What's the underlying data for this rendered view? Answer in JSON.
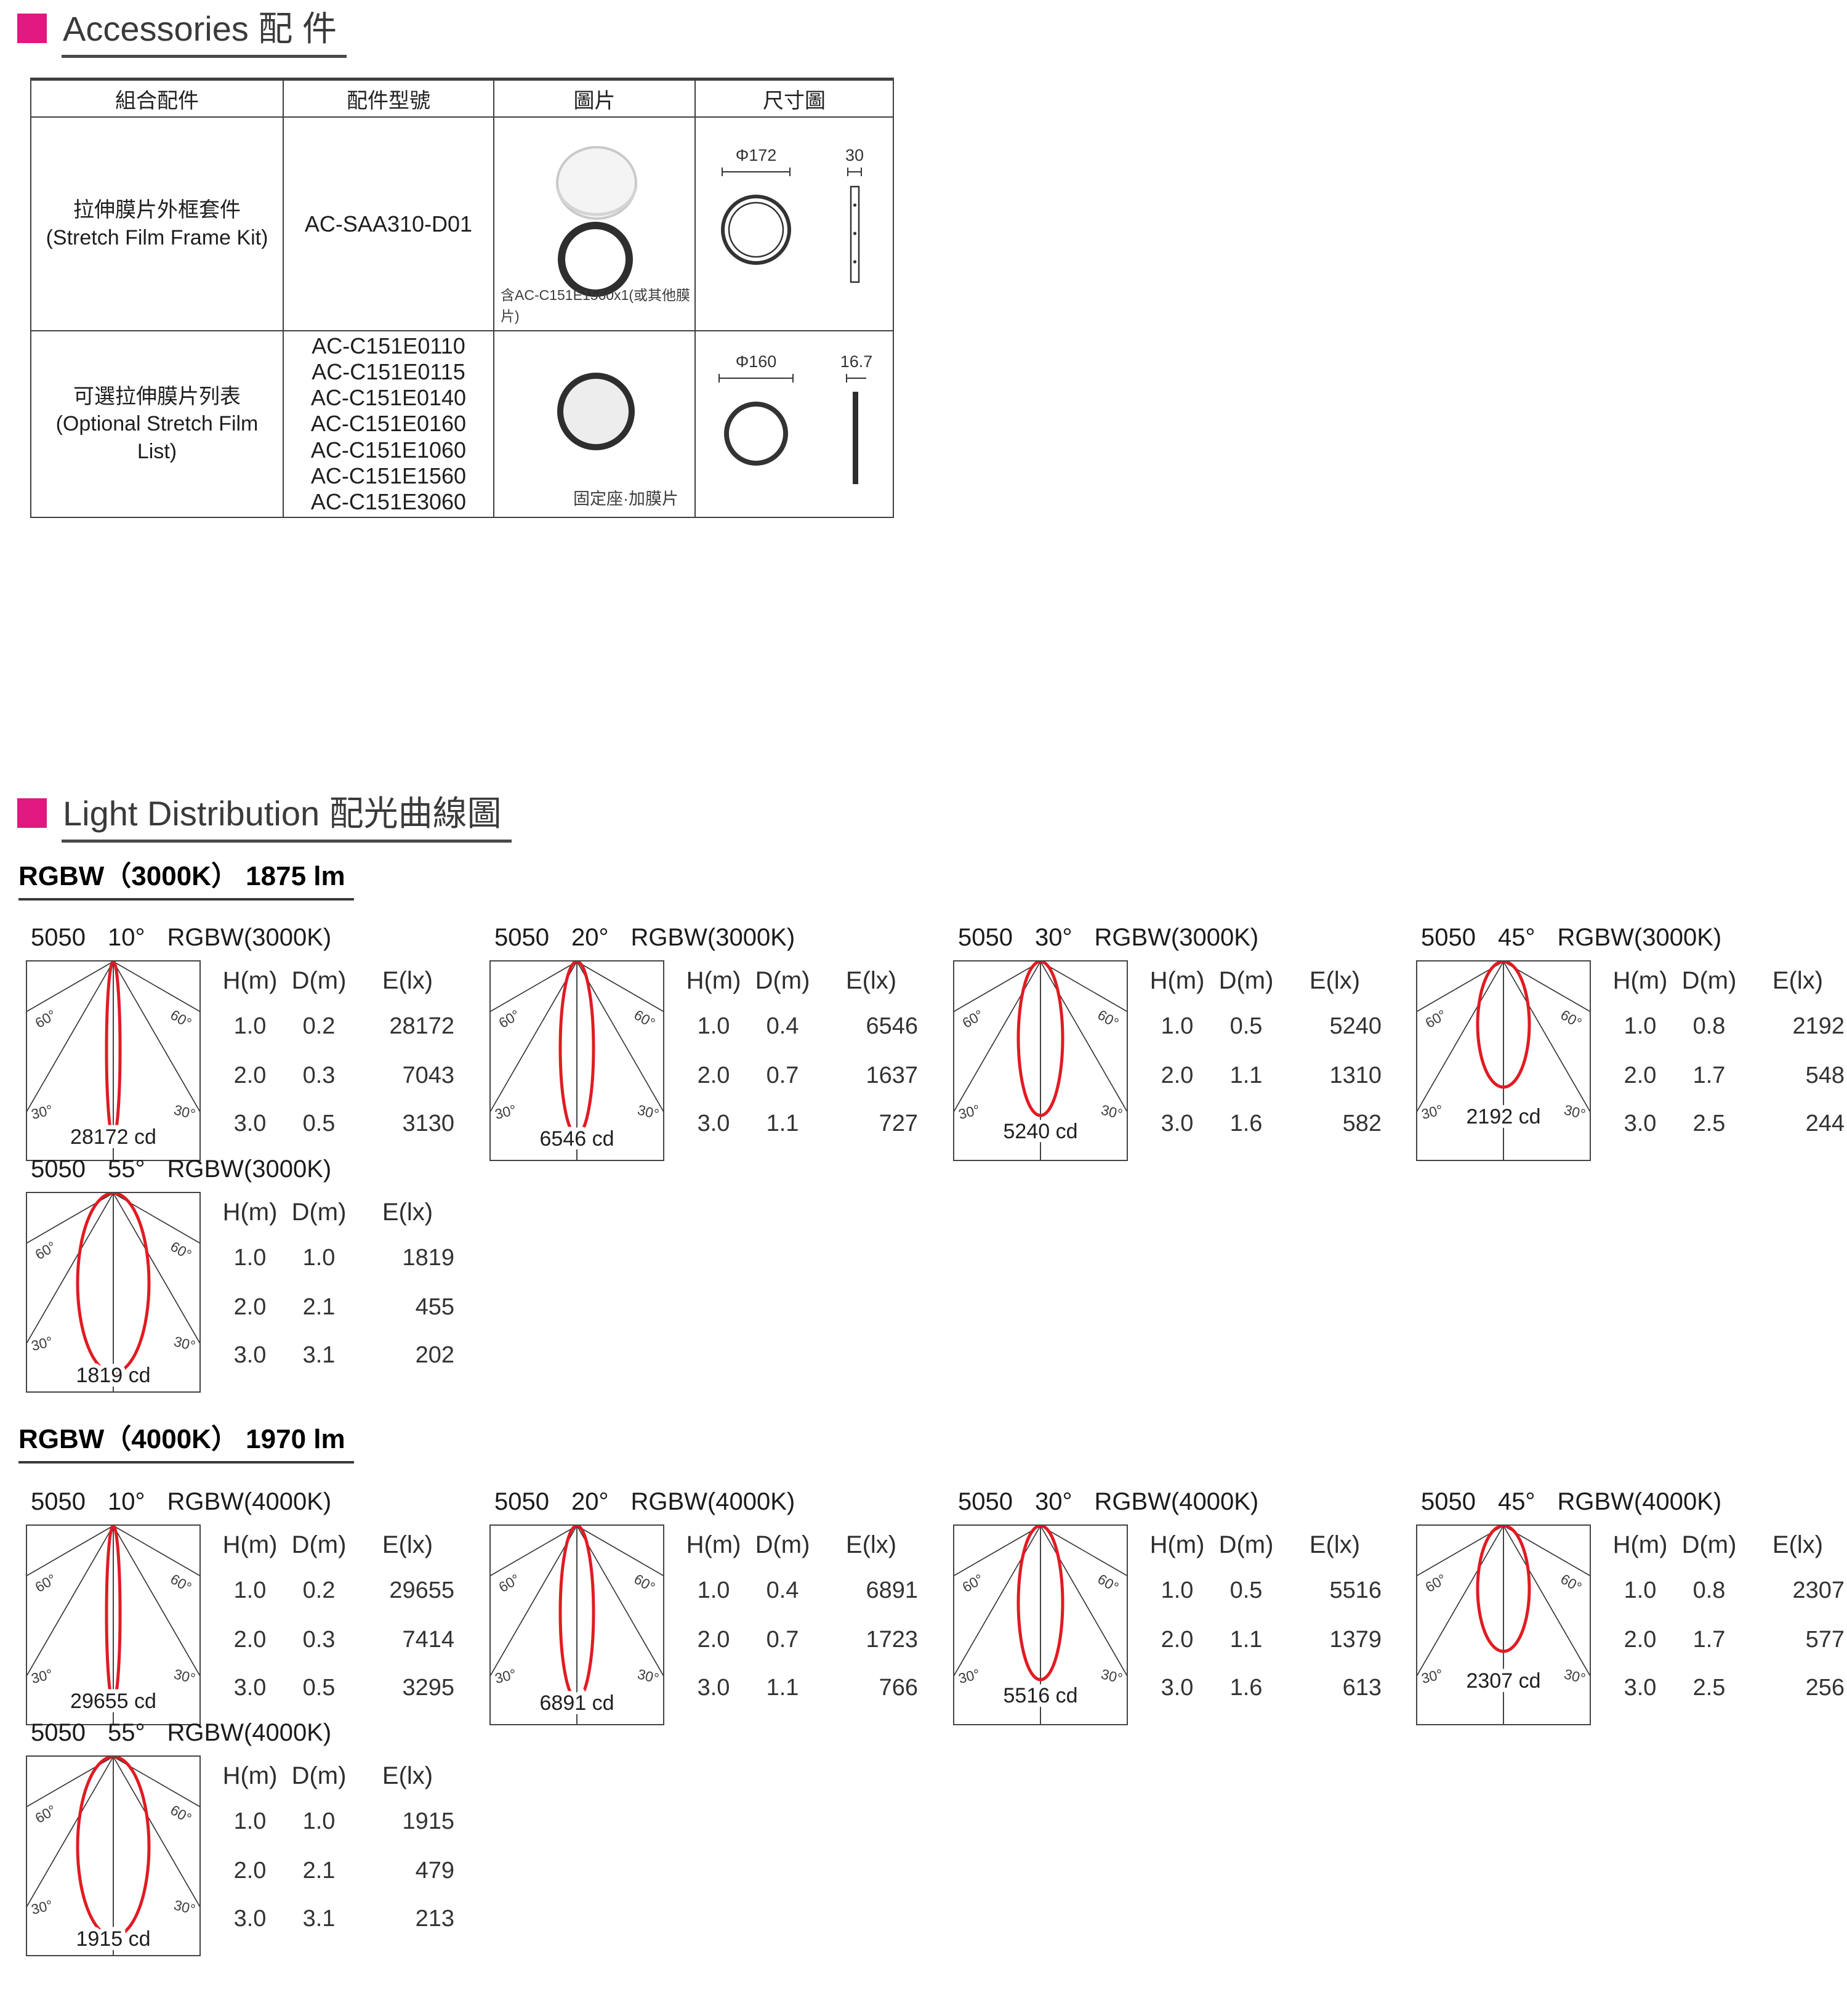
{
  "accessories": {
    "title": "Accessories 配 件",
    "table": {
      "headers": [
        "組合配件",
        "配件型號",
        "圖片",
        "尺寸圖"
      ],
      "rows": [
        {
          "name_zh": "拉伸膜片外框套件",
          "name_en": "(Stretch Film Frame Kit)",
          "models": [
            "AC-SAA310-D01"
          ],
          "picture_caption": "含AC-C151E1560x1(或其他膜片)",
          "dims": {
            "diameter": "Φ172",
            "thickness": "30"
          }
        },
        {
          "name_zh": "可選拉伸膜片列表",
          "name_en": "(Optional Stretch Film List)",
          "models": [
            "AC-C151E0110",
            "AC-C151E0115",
            "AC-C151E0140",
            "AC-C151E0160",
            "AC-C151E1060",
            "AC-C151E1560",
            "AC-C151E3060"
          ],
          "picture_caption": "固定座·加膜片",
          "dims": {
            "diameter": "Φ160",
            "thickness": "16.7"
          }
        }
      ]
    }
  },
  "light_distribution": {
    "title": "Light Distribution 配光曲線圖",
    "groups": [
      {
        "subtitle": "RGBW（3000K） 1875 lm"
      },
      {
        "subtitle": "RGBW（4000K） 1970 lm"
      }
    ]
  },
  "chart_data": [
    {
      "type": "line",
      "subtype": "polar-intensity",
      "group": 0,
      "model": "5050",
      "beam": "10°",
      "beam_deg": 10,
      "lamp": "RGBW(3000K)",
      "peak_cd": 28172,
      "cd_label": "28172 cd",
      "angle_grid_labels": [
        "60°",
        "30°"
      ],
      "table": {
        "headers": [
          "H(m)",
          "D(m)",
          "E(lx)"
        ],
        "rows": [
          [
            "1.0",
            "0.2",
            "28172"
          ],
          [
            "2.0",
            "0.3",
            "7043"
          ],
          [
            "3.0",
            "0.5",
            "3130"
          ]
        ]
      }
    },
    {
      "type": "line",
      "subtype": "polar-intensity",
      "group": 0,
      "model": "5050",
      "beam": "20°",
      "beam_deg": 20,
      "lamp": "RGBW(3000K)",
      "peak_cd": 6546,
      "cd_label": "6546 cd",
      "angle_grid_labels": [
        "60°",
        "30°"
      ],
      "table": {
        "headers": [
          "H(m)",
          "D(m)",
          "E(lx)"
        ],
        "rows": [
          [
            "1.0",
            "0.4",
            "6546"
          ],
          [
            "2.0",
            "0.7",
            "1637"
          ],
          [
            "3.0",
            "1.1",
            "727"
          ]
        ]
      }
    },
    {
      "type": "line",
      "subtype": "polar-intensity",
      "group": 0,
      "model": "5050",
      "beam": "30°",
      "beam_deg": 30,
      "lamp": "RGBW(3000K)",
      "peak_cd": 5240,
      "cd_label": "5240 cd",
      "angle_grid_labels": [
        "60°",
        "30°"
      ],
      "table": {
        "headers": [
          "H(m)",
          "D(m)",
          "E(lx)"
        ],
        "rows": [
          [
            "1.0",
            "0.5",
            "5240"
          ],
          [
            "2.0",
            "1.1",
            "1310"
          ],
          [
            "3.0",
            "1.6",
            "582"
          ]
        ]
      }
    },
    {
      "type": "line",
      "subtype": "polar-intensity",
      "group": 0,
      "model": "5050",
      "beam": "45°",
      "beam_deg": 45,
      "lamp": "RGBW(3000K)",
      "peak_cd": 2192,
      "cd_label": "2192 cd",
      "angle_grid_labels": [
        "60°",
        "30°"
      ],
      "table": {
        "headers": [
          "H(m)",
          "D(m)",
          "E(lx)"
        ],
        "rows": [
          [
            "1.0",
            "0.8",
            "2192"
          ],
          [
            "2.0",
            "1.7",
            "548"
          ],
          [
            "3.0",
            "2.5",
            "244"
          ]
        ]
      }
    },
    {
      "type": "line",
      "subtype": "polar-intensity",
      "group": 0,
      "model": "5050",
      "beam": "55°",
      "beam_deg": 55,
      "lamp": "RGBW(3000K)",
      "peak_cd": 1819,
      "cd_label": "1819 cd",
      "angle_grid_labels": [
        "60°",
        "30°"
      ],
      "table": {
        "headers": [
          "H(m)",
          "D(m)",
          "E(lx)"
        ],
        "rows": [
          [
            "1.0",
            "1.0",
            "1819"
          ],
          [
            "2.0",
            "2.1",
            "455"
          ],
          [
            "3.0",
            "3.1",
            "202"
          ]
        ]
      }
    },
    {
      "type": "line",
      "subtype": "polar-intensity",
      "group": 1,
      "model": "5050",
      "beam": "10°",
      "beam_deg": 10,
      "lamp": "RGBW(4000K)",
      "peak_cd": 29655,
      "cd_label": "29655 cd",
      "angle_grid_labels": [
        "60°",
        "30°"
      ],
      "table": {
        "headers": [
          "H(m)",
          "D(m)",
          "E(lx)"
        ],
        "rows": [
          [
            "1.0",
            "0.2",
            "29655"
          ],
          [
            "2.0",
            "0.3",
            "7414"
          ],
          [
            "3.0",
            "0.5",
            "3295"
          ]
        ]
      }
    },
    {
      "type": "line",
      "subtype": "polar-intensity",
      "group": 1,
      "model": "5050",
      "beam": "20°",
      "beam_deg": 20,
      "lamp": "RGBW(4000K)",
      "peak_cd": 6891,
      "cd_label": "6891 cd",
      "angle_grid_labels": [
        "60°",
        "30°"
      ],
      "table": {
        "headers": [
          "H(m)",
          "D(m)",
          "E(lx)"
        ],
        "rows": [
          [
            "1.0",
            "0.4",
            "6891"
          ],
          [
            "2.0",
            "0.7",
            "1723"
          ],
          [
            "3.0",
            "1.1",
            "766"
          ]
        ]
      }
    },
    {
      "type": "line",
      "subtype": "polar-intensity",
      "group": 1,
      "model": "5050",
      "beam": "30°",
      "beam_deg": 30,
      "lamp": "RGBW(4000K)",
      "peak_cd": 5516,
      "cd_label": "5516 cd",
      "angle_grid_labels": [
        "60°",
        "30°"
      ],
      "table": {
        "headers": [
          "H(m)",
          "D(m)",
          "E(lx)"
        ],
        "rows": [
          [
            "1.0",
            "0.5",
            "5516"
          ],
          [
            "2.0",
            "1.1",
            "1379"
          ],
          [
            "3.0",
            "1.6",
            "613"
          ]
        ]
      }
    },
    {
      "type": "line",
      "subtype": "polar-intensity",
      "group": 1,
      "model": "5050",
      "beam": "45°",
      "beam_deg": 45,
      "lamp": "RGBW(4000K)",
      "peak_cd": 2307,
      "cd_label": "2307 cd",
      "angle_grid_labels": [
        "60°",
        "30°"
      ],
      "table": {
        "headers": [
          "H(m)",
          "D(m)",
          "E(lx)"
        ],
        "rows": [
          [
            "1.0",
            "0.8",
            "2307"
          ],
          [
            "2.0",
            "1.7",
            "577"
          ],
          [
            "3.0",
            "2.5",
            "256"
          ]
        ]
      }
    },
    {
      "type": "line",
      "subtype": "polar-intensity",
      "group": 1,
      "model": "5050",
      "beam": "55°",
      "beam_deg": 55,
      "lamp": "RGBW(4000K)",
      "peak_cd": 1915,
      "cd_label": "1915 cd",
      "angle_grid_labels": [
        "60°",
        "30°"
      ],
      "table": {
        "headers": [
          "H(m)",
          "D(m)",
          "E(lx)"
        ],
        "rows": [
          [
            "1.0",
            "1.0",
            "1915"
          ],
          [
            "2.0",
            "2.1",
            "479"
          ],
          [
            "3.0",
            "3.1",
            "213"
          ]
        ]
      }
    }
  ],
  "colors": {
    "accent_magenta": "#E0187F",
    "beam_curve_red": "#E11B22",
    "grid_dark": "#3f3f3f"
  }
}
